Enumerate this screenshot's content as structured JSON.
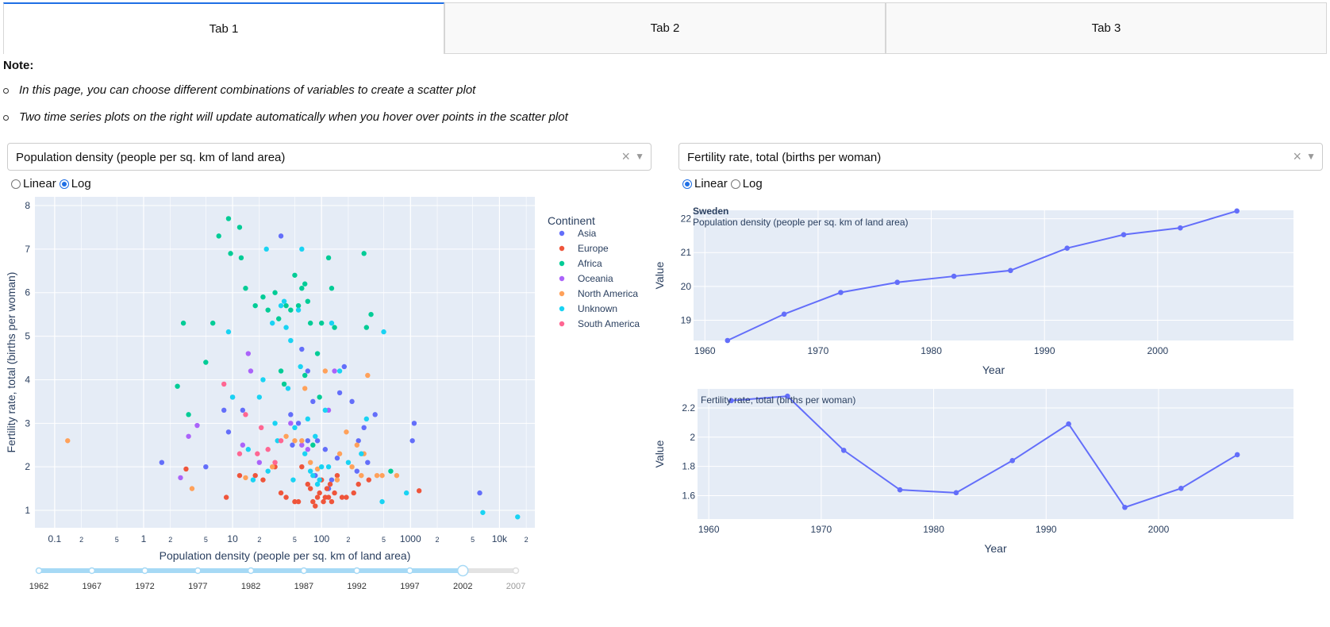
{
  "tabs": [
    {
      "label": "Tab 1",
      "active": true
    },
    {
      "label": "Tab 2",
      "active": false
    },
    {
      "label": "Tab 3",
      "active": false
    }
  ],
  "note": {
    "title": "Note:",
    "items": [
      "In this page, you can choose different combinations of variables to create a scatter plot",
      "Two time series plots on the right will update automatically when you hover over points in the scatter plot"
    ]
  },
  "controls": {
    "x_dropdown": {
      "value": "Population density (people per sq. km of land area)",
      "clear": "×",
      "caret": "▼"
    },
    "y_dropdown": {
      "value": "Fertility rate, total (births per woman)",
      "clear": "×",
      "caret": "▼"
    },
    "x_scale": {
      "options": [
        "Linear",
        "Log"
      ],
      "selected": "Log"
    },
    "y_scale": {
      "options": [
        "Linear",
        "Log"
      ],
      "selected": "Linear"
    }
  },
  "colors": {
    "plot_bg": "#e5ecf6",
    "line": "#636efa",
    "slider": "#a6d9f5",
    "Asia": "#636efa",
    "Europe": "#ef553b",
    "Africa": "#00cc96",
    "Oceania": "#ab63fa",
    "North America": "#ffa15a",
    "Unknown": "#19d3f3",
    "South America": "#ff6692"
  },
  "slider": {
    "years": [
      "1962",
      "1967",
      "1972",
      "1977",
      "1982",
      "1987",
      "1992",
      "1997",
      "2002",
      "2007"
    ],
    "selected": "2002"
  },
  "chart_data": [
    {
      "type": "scatter",
      "title": "",
      "xlabel": "Population density (people per sq. km of land area)",
      "ylabel": "Fertility rate, total (births per woman)",
      "xscale": "log",
      "xlim": [
        0.06,
        25000
      ],
      "ylim": [
        0.6,
        8.2
      ],
      "xticks": [
        {
          "v": 0.1,
          "l": "0.1",
          "major": true
        },
        {
          "v": 0.2,
          "l": "2"
        },
        {
          "v": 0.5,
          "l": "5"
        },
        {
          "v": 1,
          "l": "1",
          "major": true
        },
        {
          "v": 2,
          "l": "2"
        },
        {
          "v": 5,
          "l": "5"
        },
        {
          "v": 10,
          "l": "10",
          "major": true
        },
        {
          "v": 20,
          "l": "2"
        },
        {
          "v": 50,
          "l": "5"
        },
        {
          "v": 100,
          "l": "100",
          "major": true
        },
        {
          "v": 200,
          "l": "2"
        },
        {
          "v": 500,
          "l": "5"
        },
        {
          "v": 1000,
          "l": "1000",
          "major": true
        },
        {
          "v": 2000,
          "l": "2"
        },
        {
          "v": 5000,
          "l": "5"
        },
        {
          "v": 10000,
          "l": "10k",
          "major": true
        },
        {
          "v": 20000,
          "l": "2"
        }
      ],
      "yticks": [
        1,
        2,
        3,
        4,
        5,
        6,
        7,
        8
      ],
      "legend": {
        "title": "Continent",
        "position": "right"
      },
      "series": [
        {
          "name": "Asia",
          "points": [
            [
              1.6,
              2.1
            ],
            [
              5,
              2.0
            ],
            [
              8,
              3.3
            ],
            [
              9,
              2.8
            ],
            [
              10,
              3.6
            ],
            [
              13,
              3.3
            ],
            [
              35,
              7.3
            ],
            [
              45,
              3.2
            ],
            [
              55,
              3.0
            ],
            [
              60,
              4.7
            ],
            [
              70,
              4.2
            ],
            [
              80,
              3.5
            ],
            [
              90,
              2.6
            ],
            [
              110,
              2.4
            ],
            [
              130,
              1.7
            ],
            [
              150,
              2.2
            ],
            [
              160,
              3.7
            ],
            [
              180,
              4.3
            ],
            [
              220,
              3.5
            ],
            [
              260,
              2.6
            ],
            [
              300,
              2.9
            ],
            [
              330,
              2.1
            ],
            [
              400,
              3.2
            ],
            [
              1050,
              2.6
            ],
            [
              1100,
              3.0
            ],
            [
              6000,
              1.4
            ],
            [
              250,
              1.9
            ],
            [
              120,
              1.5
            ],
            [
              85,
              1.8
            ],
            [
              47,
              2.5
            ],
            [
              70,
              2.6
            ]
          ]
        },
        {
          "name": "Europe",
          "points": [
            [
              8.5,
              1.3
            ],
            [
              12,
              1.8
            ],
            [
              18,
              1.8
            ],
            [
              22,
              1.7
            ],
            [
              30,
              2.0
            ],
            [
              35,
              1.4
            ],
            [
              40,
              1.3
            ],
            [
              50,
              1.2
            ],
            [
              55,
              1.2
            ],
            [
              60,
              2.0
            ],
            [
              70,
              1.6
            ],
            [
              75,
              1.5
            ],
            [
              80,
              1.2
            ],
            [
              85,
              1.1
            ],
            [
              90,
              1.3
            ],
            [
              95,
              1.4
            ],
            [
              100,
              1.7
            ],
            [
              105,
              1.2
            ],
            [
              110,
              1.3
            ],
            [
              115,
              1.5
            ],
            [
              120,
              1.3
            ],
            [
              125,
              1.6
            ],
            [
              130,
              1.2
            ],
            [
              140,
              1.4
            ],
            [
              150,
              1.8
            ],
            [
              170,
              1.3
            ],
            [
              190,
              1.3
            ],
            [
              230,
              1.4
            ],
            [
              260,
              1.6
            ],
            [
              340,
              1.7
            ],
            [
              1250,
              1.45
            ],
            [
              3,
              1.95
            ]
          ]
        },
        {
          "name": "Africa",
          "points": [
            [
              2.4,
              3.85
            ],
            [
              2.8,
              5.3
            ],
            [
              3.2,
              3.2
            ],
            [
              5,
              4.4
            ],
            [
              6,
              5.3
            ],
            [
              7,
              7.3
            ],
            [
              9,
              7.7
            ],
            [
              9.5,
              6.9
            ],
            [
              12,
              7.5
            ],
            [
              12.5,
              6.8
            ],
            [
              14,
              6.1
            ],
            [
              18,
              5.7
            ],
            [
              22,
              5.9
            ],
            [
              25,
              5.6
            ],
            [
              30,
              6.0
            ],
            [
              33,
              5.4
            ],
            [
              35,
              4.2
            ],
            [
              40,
              5.7
            ],
            [
              45,
              5.6
            ],
            [
              50,
              6.4
            ],
            [
              55,
              5.7
            ],
            [
              60,
              6.1
            ],
            [
              65,
              6.2
            ],
            [
              70,
              5.8
            ],
            [
              75,
              5.3
            ],
            [
              80,
              2.5
            ],
            [
              90,
              4.6
            ],
            [
              100,
              5.3
            ],
            [
              120,
              6.8
            ],
            [
              130,
              6.1
            ],
            [
              140,
              5.2
            ],
            [
              300,
              6.9
            ],
            [
              320,
              5.2
            ],
            [
              360,
              5.5
            ],
            [
              600,
              1.9
            ],
            [
              38,
              3.9
            ],
            [
              65,
              4.1
            ],
            [
              95,
              3.6
            ]
          ]
        },
        {
          "name": "Oceania",
          "points": [
            [
              2.6,
              1.75
            ],
            [
              3.2,
              2.7
            ],
            [
              4,
              2.95
            ],
            [
              13,
              2.5
            ],
            [
              15,
              4.6
            ],
            [
              16,
              4.2
            ],
            [
              20,
              2.1
            ],
            [
              45,
              3.0
            ],
            [
              60,
              2.5
            ],
            [
              70,
              2.4
            ],
            [
              120,
              3.3
            ],
            [
              140,
              4.2
            ]
          ]
        },
        {
          "name": "North America",
          "points": [
            [
              0.14,
              2.6
            ],
            [
              3.5,
              1.5
            ],
            [
              14,
              1.75
            ],
            [
              28,
              2.0
            ],
            [
              40,
              2.7
            ],
            [
              50,
              2.6
            ],
            [
              60,
              2.6
            ],
            [
              65,
              3.8
            ],
            [
              75,
              2.1
            ],
            [
              90,
              1.95
            ],
            [
              110,
              4.2
            ],
            [
              160,
              2.3
            ],
            [
              190,
              2.8
            ],
            [
              220,
              2.0
            ],
            [
              250,
              2.5
            ],
            [
              280,
              1.8
            ],
            [
              300,
              2.3
            ],
            [
              330,
              4.1
            ],
            [
              420,
              1.8
            ],
            [
              480,
              1.8
            ],
            [
              700,
              1.8
            ],
            [
              150,
              1.7
            ]
          ]
        },
        {
          "name": "Unknown",
          "points": [
            [
              9,
              5.1
            ],
            [
              10,
              3.6
            ],
            [
              15,
              2.4
            ],
            [
              17,
              1.7
            ],
            [
              20,
              3.6
            ],
            [
              22,
              4.0
            ],
            [
              24,
              7.0
            ],
            [
              28,
              5.3
            ],
            [
              30,
              3.0
            ],
            [
              32,
              2.6
            ],
            [
              35,
              5.7
            ],
            [
              38,
              5.8
            ],
            [
              40,
              5.2
            ],
            [
              42,
              3.8
            ],
            [
              45,
              4.9
            ],
            [
              48,
              1.7
            ],
            [
              50,
              2.9
            ],
            [
              55,
              5.6
            ],
            [
              58,
              4.3
            ],
            [
              60,
              7.0
            ],
            [
              65,
              2.3
            ],
            [
              70,
              3.1
            ],
            [
              75,
              1.9
            ],
            [
              80,
              1.8
            ],
            [
              85,
              2.7
            ],
            [
              90,
              1.6
            ],
            [
              95,
              1.7
            ],
            [
              100,
              2.0
            ],
            [
              110,
              3.3
            ],
            [
              120,
              2.0
            ],
            [
              130,
              5.3
            ],
            [
              160,
              4.2
            ],
            [
              200,
              2.1
            ],
            [
              280,
              2.3
            ],
            [
              320,
              3.1
            ],
            [
              480,
              1.2
            ],
            [
              500,
              5.1
            ],
            [
              900,
              1.4
            ],
            [
              6500,
              0.95
            ],
            [
              16000,
              0.85
            ],
            [
              25,
              1.9
            ]
          ]
        },
        {
          "name": "South America",
          "points": [
            [
              8,
              3.9
            ],
            [
              12,
              2.3
            ],
            [
              14,
              3.2
            ],
            [
              19,
              2.3
            ],
            [
              21,
              2.9
            ],
            [
              25,
              2.4
            ],
            [
              30,
              2.1
            ],
            [
              35,
              2.6
            ]
          ]
        }
      ]
    },
    {
      "type": "line",
      "title": "Sweden",
      "subtitle": "Population density (people per sq. km of land area)",
      "xlabel": "Year",
      "ylabel": "Value",
      "xlim": [
        1959,
        2012
      ],
      "ylim": [
        18.4,
        22.25
      ],
      "xticks": [
        1960,
        1970,
        1980,
        1990,
        2000
      ],
      "yticks": [
        19,
        20,
        21,
        22
      ],
      "x": [
        1962,
        1967,
        1972,
        1977,
        1982,
        1987,
        1992,
        1997,
        2002,
        2007
      ],
      "y": [
        18.4,
        19.18,
        19.82,
        20.12,
        20.3,
        20.47,
        21.13,
        21.53,
        21.73,
        22.23
      ]
    },
    {
      "type": "line",
      "title": "",
      "subtitle": "Fertility rate, total (births per woman)",
      "xlabel": "Year",
      "ylabel": "Value",
      "xlim": [
        1959,
        2012
      ],
      "ylim": [
        1.44,
        2.33
      ],
      "xticks": [
        1960,
        1970,
        1980,
        1990,
        2000
      ],
      "yticks": [
        {
          "v": 1.6,
          "l": "1.6"
        },
        {
          "v": 1.8,
          "l": "1.8"
        },
        {
          "v": 2.0,
          "l": "2"
        },
        {
          "v": 2.2,
          "l": "2.2"
        }
      ],
      "x": [
        1962,
        1967,
        1972,
        1977,
        1982,
        1987,
        1992,
        1997,
        2002,
        2007
      ],
      "y": [
        2.25,
        2.28,
        1.91,
        1.64,
        1.62,
        1.84,
        2.09,
        1.52,
        1.65,
        1.88
      ]
    }
  ]
}
